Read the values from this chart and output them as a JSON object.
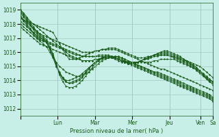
{
  "title": "",
  "xlabel": "Pression niveau de la mer( hPa )",
  "ylabel": "",
  "bg_color": "#c8eee8",
  "grid_color": "#a0c8c0",
  "line_color": "#1a5c1a",
  "marker_color": "#1a5c1a",
  "ylim": [
    1011.5,
    1019.5
  ],
  "yticks": [
    1012,
    1013,
    1014,
    1015,
    1016,
    1017,
    1018,
    1019
  ],
  "day_positions": [
    0,
    48,
    96,
    144,
    192,
    232,
    248
  ],
  "day_labels": [
    "Lun",
    "Mar",
    "Mer",
    "Jeu",
    "Ven",
    "Sa"
  ],
  "series": [
    [
      1019.0,
      1018.8,
      1018.5,
      1018.2,
      1018.0,
      1017.8,
      1017.6,
      1017.4,
      1017.2,
      1017.0,
      1016.8,
      1016.6,
      1016.4,
      1016.2,
      1016.0,
      1015.8,
      1015.7,
      1015.6,
      1015.5,
      1015.4,
      1015.4,
      1015.4,
      1015.4,
      1015.5,
      1015.5,
      1015.6,
      1015.6,
      1015.6,
      1015.7,
      1015.7,
      1015.7,
      1015.6,
      1015.5,
      1015.4,
      1015.3,
      1015.2,
      1015.1,
      1015.0,
      1014.9,
      1014.8,
      1014.7,
      1014.6,
      1014.6,
      1014.5,
      1014.4,
      1014.3,
      1014.2,
      1014.1,
      1014.0,
      1013.9,
      1013.8,
      1013.7,
      1013.6,
      1013.5,
      1013.4,
      1013.3,
      1013.2,
      1013.1,
      1013.0,
      1012.8
    ],
    [
      1018.5,
      1018.3,
      1018.1,
      1017.9,
      1017.7,
      1017.5,
      1017.3,
      1017.2,
      1017.1,
      1017.0,
      1016.9,
      1016.8,
      1016.7,
      1016.6,
      1016.5,
      1016.4,
      1016.3,
      1016.2,
      1016.1,
      1016.0,
      1016.0,
      1016.0,
      1016.0,
      1016.1,
      1016.1,
      1016.2,
      1016.2,
      1016.2,
      1016.2,
      1016.2,
      1016.1,
      1016.0,
      1015.9,
      1015.8,
      1015.7,
      1015.6,
      1015.5,
      1015.4,
      1015.3,
      1015.2,
      1015.1,
      1015.0,
      1014.9,
      1014.8,
      1014.8,
      1014.7,
      1014.6,
      1014.5,
      1014.4,
      1014.3,
      1014.2,
      1014.1,
      1014.0,
      1013.9,
      1013.8,
      1013.7,
      1013.6,
      1013.5,
      1013.4,
      1013.3
    ],
    [
      1018.2,
      1018.0,
      1017.8,
      1017.6,
      1017.4,
      1017.2,
      1017.0,
      1016.9,
      1016.8,
      1016.7,
      1016.6,
      1016.5,
      1016.4,
      1016.3,
      1016.2,
      1016.1,
      1016.0,
      1015.9,
      1015.8,
      1015.7,
      1015.7,
      1015.7,
      1015.7,
      1015.7,
      1015.7,
      1015.7,
      1015.7,
      1015.7,
      1015.7,
      1015.7,
      1015.7,
      1015.6,
      1015.5,
      1015.4,
      1015.3,
      1015.2,
      1015.1,
      1015.0,
      1014.9,
      1014.8,
      1014.7,
      1014.6,
      1014.5,
      1014.4,
      1014.3,
      1014.2,
      1014.1,
      1014.0,
      1013.9,
      1013.8,
      1013.7,
      1013.6,
      1013.5,
      1013.4,
      1013.3,
      1013.2,
      1013.1,
      1013.0,
      1012.9,
      1012.7
    ],
    [
      1018.0,
      1017.8,
      1017.6,
      1017.4,
      1017.2,
      1017.0,
      1016.9,
      1016.8,
      1016.7,
      1016.6,
      1016.5,
      1016.4,
      1016.3,
      1016.2,
      1016.1,
      1016.0,
      1015.9,
      1015.8,
      1015.8,
      1015.7,
      1015.7,
      1015.7,
      1015.7,
      1015.7,
      1015.8,
      1015.8,
      1015.8,
      1015.8,
      1015.7,
      1015.7,
      1015.6,
      1015.5,
      1015.4,
      1015.3,
      1015.2,
      1015.1,
      1015.0,
      1014.9,
      1014.8,
      1014.7,
      1014.6,
      1014.5,
      1014.4,
      1014.3,
      1014.2,
      1014.1,
      1014.0,
      1013.9,
      1013.8,
      1013.7,
      1013.6,
      1013.5,
      1013.4,
      1013.3,
      1013.2,
      1013.1,
      1013.0,
      1012.9,
      1012.8,
      1012.6
    ],
    [
      1017.8,
      1017.6,
      1017.4,
      1017.2,
      1017.0,
      1016.8,
      1016.6,
      1016.5,
      1016.4,
      1016.3,
      1016.2,
      1016.1,
      1016.0,
      1015.9,
      1015.8,
      1015.7,
      1015.6,
      1015.5,
      1015.5,
      1015.4,
      1015.4,
      1015.4,
      1015.4,
      1015.5,
      1015.5,
      1015.6,
      1015.6,
      1015.6,
      1015.6,
      1015.6,
      1015.5,
      1015.4,
      1015.3,
      1015.2,
      1015.1,
      1015.0,
      1014.9,
      1014.8,
      1014.7,
      1014.6,
      1014.5,
      1014.4,
      1014.3,
      1014.2,
      1014.1,
      1014.0,
      1013.9,
      1013.8,
      1013.7,
      1013.6,
      1013.5,
      1013.4,
      1013.3,
      1013.2,
      1013.1,
      1013.0,
      1012.9,
      1012.8,
      1012.7,
      1012.5
    ],
    [
      1018.6,
      1018.3,
      1018.0,
      1017.7,
      1017.4,
      1017.1,
      1016.9,
      1016.8,
      1016.7,
      1016.2,
      1015.7,
      1015.3,
      1015.0,
      1014.8,
      1014.6,
      1014.5,
      1014.4,
      1014.3,
      1014.3,
      1014.4,
      1014.5,
      1014.6,
      1014.8,
      1015.0,
      1015.2,
      1015.4,
      1015.5,
      1015.6,
      1015.6,
      1015.6,
      1015.5,
      1015.4,
      1015.4,
      1015.3,
      1015.3,
      1015.3,
      1015.3,
      1015.3,
      1015.3,
      1015.3,
      1015.3,
      1015.4,
      1015.4,
      1015.5,
      1015.5,
      1015.5,
      1015.5,
      1015.5,
      1015.4,
      1015.3,
      1015.2,
      1015.1,
      1015.0,
      1014.9,
      1014.8,
      1014.6,
      1014.4,
      1014.2,
      1014.0,
      1013.9
    ],
    [
      1018.8,
      1018.5,
      1018.2,
      1017.9,
      1017.6,
      1017.3,
      1017.1,
      1016.9,
      1016.7,
      1016.2,
      1015.7,
      1015.0,
      1014.5,
      1014.2,
      1014.0,
      1014.0,
      1014.1,
      1014.2,
      1014.3,
      1014.5,
      1014.7,
      1014.9,
      1015.1,
      1015.3,
      1015.4,
      1015.5,
      1015.6,
      1015.6,
      1015.6,
      1015.5,
      1015.4,
      1015.3,
      1015.3,
      1015.2,
      1015.2,
      1015.3,
      1015.3,
      1015.4,
      1015.5,
      1015.5,
      1015.6,
      1015.7,
      1015.7,
      1015.8,
      1015.8,
      1015.8,
      1015.7,
      1015.6,
      1015.5,
      1015.4,
      1015.3,
      1015.2,
      1015.0,
      1014.9,
      1014.7,
      1014.5,
      1014.3,
      1014.1,
      1013.9,
      1013.8
    ],
    [
      1018.9,
      1018.6,
      1018.3,
      1018.0,
      1017.7,
      1017.4,
      1017.2,
      1017.0,
      1016.8,
      1016.3,
      1015.8,
      1015.1,
      1014.5,
      1014.1,
      1013.9,
      1013.8,
      1013.9,
      1014.0,
      1014.1,
      1014.3,
      1014.6,
      1014.9,
      1015.1,
      1015.3,
      1015.5,
      1015.6,
      1015.7,
      1015.7,
      1015.7,
      1015.6,
      1015.5,
      1015.4,
      1015.3,
      1015.3,
      1015.2,
      1015.3,
      1015.3,
      1015.4,
      1015.5,
      1015.6,
      1015.7,
      1015.8,
      1015.8,
      1015.9,
      1015.9,
      1015.9,
      1015.8,
      1015.7,
      1015.6,
      1015.5,
      1015.4,
      1015.3,
      1015.1,
      1015.0,
      1014.8,
      1014.6,
      1014.4,
      1014.2,
      1014.0,
      1013.9
    ],
    [
      1019.0,
      1018.7,
      1018.4,
      1018.1,
      1017.8,
      1017.5,
      1017.3,
      1017.1,
      1016.9,
      1016.4,
      1015.9,
      1015.2,
      1014.6,
      1014.2,
      1013.9,
      1013.8,
      1013.8,
      1013.9,
      1014.0,
      1014.2,
      1014.5,
      1014.8,
      1015.1,
      1015.3,
      1015.5,
      1015.6,
      1015.7,
      1015.7,
      1015.7,
      1015.6,
      1015.5,
      1015.4,
      1015.3,
      1015.2,
      1015.2,
      1015.2,
      1015.3,
      1015.4,
      1015.5,
      1015.6,
      1015.7,
      1015.8,
      1015.9,
      1016.0,
      1016.0,
      1016.0,
      1015.9,
      1015.8,
      1015.7,
      1015.6,
      1015.5,
      1015.4,
      1015.2,
      1015.1,
      1014.9,
      1014.7,
      1014.5,
      1014.3,
      1014.1,
      1013.9
    ],
    [
      1018.5,
      1018.2,
      1017.9,
      1017.6,
      1017.3,
      1017.0,
      1016.8,
      1016.6,
      1016.4,
      1016.0,
      1015.6,
      1015.0,
      1014.4,
      1013.9,
      1013.6,
      1013.5,
      1013.5,
      1013.6,
      1013.8,
      1014.0,
      1014.3,
      1014.6,
      1014.9,
      1015.2,
      1015.4,
      1015.6,
      1015.7,
      1015.7,
      1015.7,
      1015.6,
      1015.5,
      1015.4,
      1015.3,
      1015.2,
      1015.2,
      1015.2,
      1015.3,
      1015.4,
      1015.5,
      1015.6,
      1015.7,
      1015.8,
      1015.9,
      1016.0,
      1016.1,
      1016.1,
      1016.0,
      1015.9,
      1015.8,
      1015.7,
      1015.5,
      1015.4,
      1015.2,
      1015.1,
      1014.9,
      1014.7,
      1014.4,
      1014.1,
      1013.9,
      1013.7
    ],
    [
      1018.4,
      1018.3,
      1018.2,
      1018.1,
      1018.0,
      1017.9,
      1017.8,
      1017.7,
      1017.6,
      1017.5,
      1017.4,
      1017.0,
      1016.6,
      1016.2,
      1015.8,
      1015.5,
      1015.5,
      1015.5,
      1015.6,
      1015.7,
      1015.8,
      1015.9,
      1016.0,
      1016.1,
      1016.1,
      1016.2,
      1016.2,
      1016.3,
      1016.3,
      1016.3,
      1016.2,
      1016.1,
      1016.0,
      1015.9,
      1015.8,
      1015.7,
      1015.6,
      1015.6,
      1015.6,
      1015.7,
      1015.7,
      1015.8,
      1015.8,
      1015.8,
      1015.8,
      1015.8,
      1015.7,
      1015.7,
      1015.6,
      1015.5,
      1015.4,
      1015.4,
      1015.3,
      1015.2,
      1015.1,
      1015.0,
      1014.8,
      1014.6,
      1014.4,
      1014.2
    ]
  ]
}
